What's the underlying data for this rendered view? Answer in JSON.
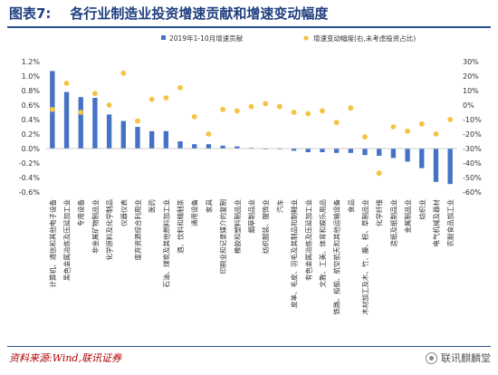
{
  "title": {
    "label": "图表7:",
    "text": "各行业制造业投资增速贡献和增速变动幅度"
  },
  "source": "资料来源:Wind,联讯证券",
  "watermark": "联讯麒麟堂",
  "colors": {
    "bar": "#4472c4",
    "dot": "#f5c242",
    "title": "#1f3f7f",
    "source": "#b00000"
  },
  "chart_data": {
    "type": "bar",
    "categories": [
      "计算机、通信和其他电子设备",
      "黑色金属冶炼及压延加工业",
      "专用设备",
      "非金属矿物制品业",
      "化学原料及化学制品",
      "仪器仪表",
      "废弃资源综合利用业",
      "医药",
      "石油、煤炭及其他燃料加工业",
      "酒、饮料和精制茶",
      "通用设备",
      "家具",
      "印刷业和记录媒介的复制",
      "橡胶和塑料制品业",
      "烟草制品业",
      "纺织服装、服饰业",
      "汽车",
      "皮革、毛皮、羽毛及其制品和制鞋业",
      "有色金属冶炼及压延加工业",
      "文教、工美、体育和娱乐用品",
      "铁路、船舶、航空航天和其他运输设备",
      "食品",
      "木材加工及木、竹、藤、棕、草制品业",
      "化学纤维",
      "造纸及纸制品业",
      "金属制品业",
      "纺织业",
      "电气机械及器材",
      "农副食品加工业"
    ],
    "series": [
      {
        "name": "2019年1-10月增速贡献",
        "kind": "bar",
        "axis": "left",
        "values": [
          1.07,
          0.78,
          0.71,
          0.7,
          0.47,
          0.38,
          0.3,
          0.24,
          0.24,
          0.1,
          0.06,
          0.06,
          0.04,
          0.03,
          0.01,
          -0.01,
          -0.01,
          -0.03,
          -0.05,
          -0.05,
          -0.06,
          -0.06,
          -0.09,
          -0.1,
          -0.13,
          -0.18,
          -0.27,
          -0.46,
          -0.49
        ]
      },
      {
        "name": "增速变动幅度(右,未考虑投资占比)",
        "kind": "scatter",
        "axis": "right",
        "values": [
          -3,
          15,
          -5,
          8,
          0,
          22,
          -11,
          4,
          5,
          12,
          -8,
          -20,
          -3,
          -4,
          -1,
          1,
          -1,
          -5,
          -6,
          -4,
          -12,
          -2,
          -22,
          -47,
          -15,
          -18,
          -13,
          -20,
          -10
        ]
      }
    ],
    "y_left": {
      "min": -0.6,
      "max": 1.2,
      "step": 0.2,
      "format": "percent1"
    },
    "y_right": {
      "min": -60,
      "max": 30,
      "step": 10,
      "format": "percent0"
    },
    "legend_position": "top",
    "grid": false
  }
}
